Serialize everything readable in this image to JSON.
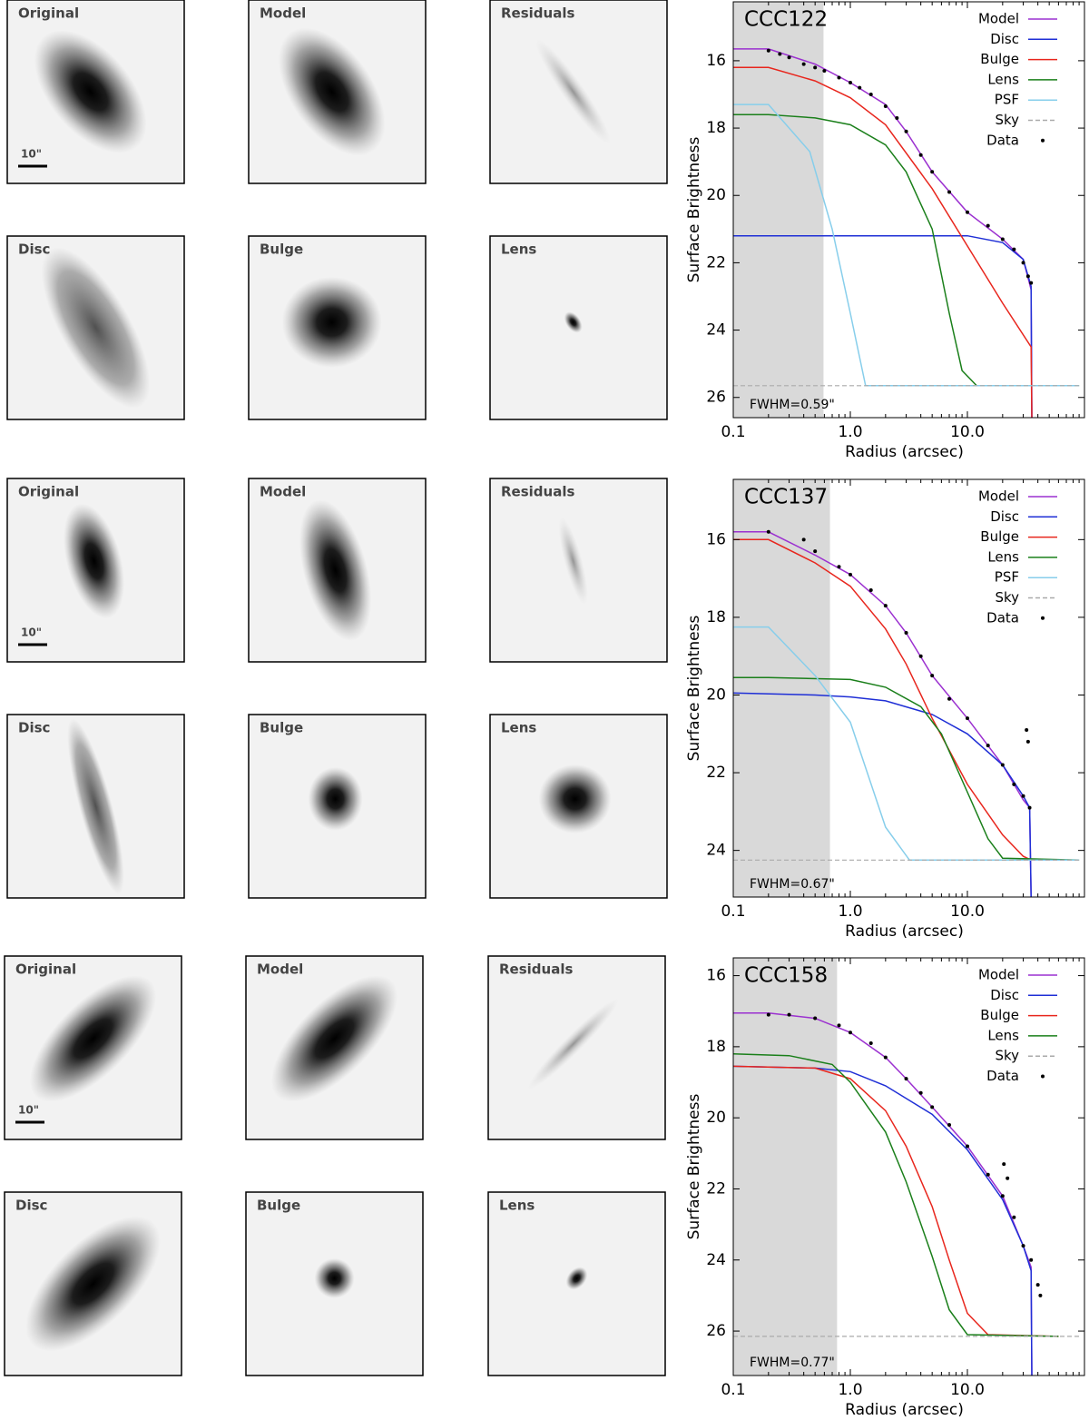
{
  "image_panels": [
    {
      "labels": [
        "Original",
        "Model",
        "Residuals",
        "Disc",
        "Bulge",
        "Lens"
      ],
      "scale_label": "10\""
    },
    {
      "labels": [
        "Original",
        "Model",
        "Residuals",
        "Disc",
        "Bulge",
        "Lens"
      ],
      "scale_label": "10\""
    },
    {
      "labels": [
        "Original",
        "Model",
        "Residuals",
        "Disc",
        "Bulge",
        "Lens"
      ],
      "scale_label": "10\""
    }
  ],
  "chart_data": [
    {
      "type": "line",
      "title": "CCC122",
      "xlabel": "Radius (arcsec)",
      "ylabel": "Surface Brightness",
      "xscale": "log",
      "xlim": [
        0.1,
        100
      ],
      "xticks": [
        0.1,
        {
          "value": 1,
          "label": "1.0"
        },
        {
          "value": 10,
          "label": "10.0"
        }
      ],
      "ylim": [
        26.6,
        14.25
      ],
      "yticks": [
        16,
        18,
        20,
        22,
        24,
        26
      ],
      "legend": "upper right",
      "fwhm": 0.59,
      "fwhm_label": "FWHM=0.59\"",
      "shade_color": "#d9d9d9",
      "series": [
        {
          "name": "Model",
          "color": "#9b30d0",
          "style": "solid",
          "x": [
            0.1,
            0.2,
            0.5,
            1,
            2,
            3,
            5,
            10,
            20,
            30,
            35,
            35.5
          ],
          "values": [
            15.65,
            15.65,
            16.1,
            16.65,
            17.3,
            18.1,
            19.3,
            20.5,
            21.3,
            21.9,
            22.8,
            26.6
          ]
        },
        {
          "name": "Disc",
          "color": "#1f2fd6",
          "style": "solid",
          "x": [
            0.1,
            1,
            10,
            20,
            30,
            35,
            35.5
          ],
          "values": [
            21.2,
            21.2,
            21.2,
            21.4,
            21.9,
            22.7,
            26.6
          ]
        },
        {
          "name": "Bulge",
          "color": "#e8261d",
          "style": "solid",
          "x": [
            0.1,
            0.2,
            0.5,
            1,
            2,
            5,
            10,
            20,
            35,
            35.5
          ],
          "values": [
            16.2,
            16.2,
            16.6,
            17.1,
            17.9,
            19.8,
            21.5,
            23.2,
            24.5,
            26.6
          ]
        },
        {
          "name": "Lens",
          "color": "#1a7f1a",
          "style": "solid",
          "x": [
            0.1,
            0.2,
            0.5,
            1,
            2,
            3,
            5,
            7,
            9,
            12,
            90
          ],
          "values": [
            17.6,
            17.6,
            17.7,
            17.9,
            18.5,
            19.3,
            21.0,
            23.5,
            25.2,
            25.65,
            25.65
          ]
        },
        {
          "name": "PSF",
          "color": "#87ceeb",
          "style": "solid",
          "x": [
            0.1,
            0.2,
            0.45,
            0.7,
            1.0,
            1.35,
            90
          ],
          "values": [
            17.3,
            17.3,
            18.7,
            21.0,
            23.5,
            25.65,
            25.65
          ]
        },
        {
          "name": "Sky",
          "color": "#aaaaaa",
          "style": "dashed",
          "x": [
            0.1,
            90
          ],
          "values": [
            25.65,
            25.65
          ]
        },
        {
          "name": "Data",
          "color": "#000000",
          "style": "points",
          "x": [
            0.2,
            0.25,
            0.3,
            0.4,
            0.5,
            0.6,
            0.8,
            1.0,
            1.2,
            1.5,
            2,
            2.5,
            3,
            4,
            5,
            7,
            10,
            15,
            20,
            25,
            30,
            33,
            35
          ],
          "values": [
            15.7,
            15.8,
            15.9,
            16.1,
            16.2,
            16.3,
            16.5,
            16.65,
            16.8,
            17.0,
            17.35,
            17.7,
            18.1,
            18.8,
            19.3,
            19.9,
            20.5,
            20.9,
            21.3,
            21.6,
            22.0,
            22.4,
            22.6
          ]
        }
      ]
    },
    {
      "type": "line",
      "title": "CCC137",
      "xlabel": "Radius (arcsec)",
      "ylabel": "Surface Brightness",
      "xscale": "log",
      "xlim": [
        0.1,
        100
      ],
      "xticks": [
        0.1,
        {
          "value": 1,
          "label": "1.0"
        },
        {
          "value": 10,
          "label": "10.0"
        }
      ],
      "ylim": [
        25.2,
        14.45
      ],
      "yticks": [
        16,
        18,
        20,
        22,
        24
      ],
      "legend": "upper right",
      "fwhm": 0.67,
      "fwhm_label": "FWHM=0.67\"",
      "shade_color": "#d9d9d9",
      "series": [
        {
          "name": "Model",
          "color": "#9b30d0",
          "style": "solid",
          "x": [
            0.1,
            0.2,
            0.5,
            1,
            2,
            3,
            5,
            10,
            20,
            30,
            34,
            35
          ],
          "values": [
            15.8,
            15.8,
            16.4,
            16.9,
            17.7,
            18.4,
            19.5,
            20.6,
            21.8,
            22.7,
            22.9,
            25.2
          ]
        },
        {
          "name": "Disc",
          "color": "#1f2fd6",
          "style": "solid",
          "x": [
            0.1,
            0.5,
            1,
            2,
            5,
            10,
            20,
            30,
            34,
            35
          ],
          "values": [
            19.95,
            20.0,
            20.05,
            20.15,
            20.5,
            21.0,
            21.8,
            22.6,
            22.9,
            25.2
          ]
        },
        {
          "name": "Bulge",
          "color": "#e8261d",
          "style": "solid",
          "x": [
            0.1,
            0.2,
            0.5,
            1,
            2,
            3,
            5,
            10,
            20,
            30,
            35
          ],
          "values": [
            16.0,
            16.0,
            16.6,
            17.2,
            18.3,
            19.2,
            20.6,
            22.3,
            23.6,
            24.15,
            24.25
          ]
        },
        {
          "name": "Lens",
          "color": "#1a7f1a",
          "style": "solid",
          "x": [
            0.1,
            0.2,
            1,
            2,
            4,
            6,
            10,
            15,
            20,
            90
          ],
          "values": [
            19.55,
            19.55,
            19.6,
            19.8,
            20.3,
            21.0,
            22.5,
            23.7,
            24.2,
            24.25
          ]
        },
        {
          "name": "PSF",
          "color": "#87ceeb",
          "style": "solid",
          "x": [
            0.1,
            0.2,
            0.5,
            1.0,
            2.0,
            3.2,
            90
          ],
          "values": [
            18.25,
            18.25,
            19.5,
            20.7,
            23.4,
            24.25,
            24.25
          ]
        },
        {
          "name": "Sky",
          "color": "#aaaaaa",
          "style": "dashed",
          "x": [
            0.1,
            90
          ],
          "values": [
            24.25,
            24.25
          ]
        },
        {
          "name": "Data",
          "color": "#000000",
          "style": "points",
          "x": [
            0.2,
            0.4,
            0.5,
            0.8,
            1,
            1.5,
            2,
            3,
            4,
            5,
            7,
            10,
            15,
            20,
            25,
            30,
            32,
            33,
            34
          ],
          "values": [
            15.8,
            16.0,
            16.3,
            16.7,
            16.9,
            17.3,
            17.7,
            18.4,
            19.0,
            19.5,
            20.1,
            20.6,
            21.3,
            21.8,
            22.3,
            22.6,
            20.9,
            21.2,
            22.9
          ]
        }
      ]
    },
    {
      "type": "line",
      "title": "CCC158",
      "xlabel": "Radius (arcsec)",
      "ylabel": "Surface Brightness",
      "xscale": "log",
      "xlim": [
        0.1,
        100
      ],
      "xticks": [
        0.1,
        {
          "value": 1,
          "label": "1.0"
        },
        {
          "value": 10,
          "label": "10.0"
        }
      ],
      "ylim": [
        27.25,
        15.5
      ],
      "yticks": [
        16,
        18,
        20,
        22,
        24,
        26
      ],
      "legend": "upper right",
      "fwhm": 0.77,
      "fwhm_label": "FWHM=0.77\"",
      "shade_color": "#d9d9d9",
      "series": [
        {
          "name": "Model",
          "color": "#9b30d0",
          "style": "solid",
          "x": [
            0.1,
            0.2,
            0.5,
            1,
            2,
            3,
            5,
            10,
            20,
            30,
            35,
            35.5
          ],
          "values": [
            17.05,
            17.05,
            17.2,
            17.6,
            18.3,
            18.9,
            19.7,
            20.8,
            22.2,
            23.6,
            24.2,
            27.25
          ]
        },
        {
          "name": "Disc",
          "color": "#1f2fd6",
          "style": "solid",
          "x": [
            0.1,
            0.5,
            1,
            2,
            5,
            10,
            20,
            30,
            35,
            35.5
          ],
          "values": [
            18.55,
            18.6,
            18.7,
            19.1,
            19.9,
            20.9,
            22.3,
            23.6,
            24.3,
            27.25
          ]
        },
        {
          "name": "Bulge",
          "color": "#e8261d",
          "style": "solid",
          "x": [
            0.1,
            0.5,
            1,
            2,
            3,
            5,
            7,
            10,
            15,
            60
          ],
          "values": [
            18.55,
            18.6,
            18.9,
            19.8,
            20.8,
            22.5,
            24.0,
            25.5,
            26.1,
            26.15
          ]
        },
        {
          "name": "Lens",
          "color": "#1a7f1a",
          "style": "solid",
          "x": [
            0.1,
            0.3,
            0.7,
            1,
            2,
            3,
            5,
            7,
            10,
            60
          ],
          "values": [
            18.2,
            18.25,
            18.5,
            19.0,
            20.4,
            21.8,
            23.9,
            25.4,
            26.1,
            26.15
          ]
        },
        {
          "name": "Sky",
          "color": "#aaaaaa",
          "style": "dashed",
          "x": [
            0.1,
            90
          ],
          "values": [
            26.15,
            26.15
          ]
        },
        {
          "name": "Data",
          "color": "#000000",
          "style": "points",
          "x": [
            0.2,
            0.3,
            0.5,
            0.8,
            1,
            1.5,
            2,
            3,
            4,
            5,
            7,
            10,
            15,
            20,
            20.5,
            22,
            25,
            30,
            35,
            40,
            42
          ],
          "values": [
            17.1,
            17.1,
            17.2,
            17.4,
            17.6,
            17.9,
            18.3,
            18.9,
            19.3,
            19.7,
            20.2,
            20.8,
            21.6,
            22.2,
            21.3,
            21.7,
            22.8,
            23.6,
            24.0,
            24.7,
            25.0
          ]
        }
      ]
    }
  ]
}
